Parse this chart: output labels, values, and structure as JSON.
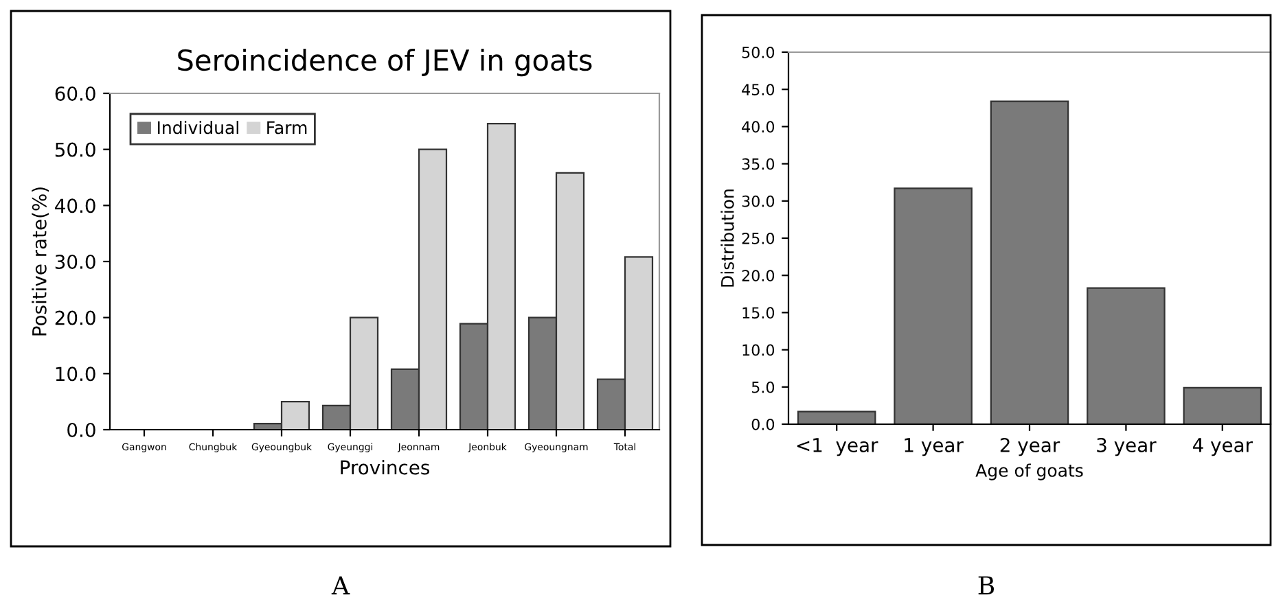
{
  "chart_data": [
    {
      "type": "bar",
      "title": "Seroincidence of JEV in goats",
      "xlabel": "Provinces",
      "ylabel": "Positive rate(%)",
      "categories": [
        "Gangwon",
        "Chungbuk",
        "Gyeoungbuk",
        "Gyeunggi",
        "Jeonnam",
        "Jeonbuk",
        "Gyeoungnam",
        "Total"
      ],
      "series": [
        {
          "name": "Individual",
          "color": "#7a7a7a",
          "values": [
            0,
            0,
            1.1,
            4.3,
            10.8,
            18.9,
            20.0,
            9.0
          ]
        },
        {
          "name": "Farm",
          "color": "#d4d4d4",
          "values": [
            0,
            0,
            5.0,
            20.0,
            50.0,
            54.6,
            45.8,
            30.8
          ]
        }
      ],
      "ylim": [
        0,
        60
      ],
      "yticks": [
        {
          "value": 0,
          "label": "0.0"
        },
        {
          "value": 10,
          "label": "10.0"
        },
        {
          "value": 20,
          "label": "20.0"
        },
        {
          "value": 30,
          "label": "30.0"
        },
        {
          "value": 40,
          "label": "40.0"
        },
        {
          "value": 50,
          "label": "50.0"
        },
        {
          "value": 60,
          "label": "60.0"
        }
      ],
      "legend": "top left",
      "grid": false,
      "annotations": [
        "A"
      ]
    },
    {
      "type": "bar",
      "xlabel": "Age of goats",
      "ylabel": "Distribution",
      "categories": [
        "<1  year",
        "1 year",
        "2 year",
        "3 year",
        "4 year"
      ],
      "series": [
        {
          "color": "#7a7a7a",
          "values": [
            1.7,
            31.7,
            43.4,
            18.3,
            4.9
          ]
        }
      ],
      "ylim": [
        0,
        50
      ],
      "yticks": [
        {
          "value": 0,
          "label": "0.0"
        },
        {
          "value": 5,
          "label": "5.0"
        },
        {
          "value": 10,
          "label": "10.0"
        },
        {
          "value": 15,
          "label": "15.0"
        },
        {
          "value": 20,
          "label": "20.0"
        },
        {
          "value": 25,
          "label": "25.0"
        },
        {
          "value": 30,
          "label": "30.0"
        },
        {
          "value": 35,
          "label": "35.0"
        },
        {
          "value": 40,
          "label": "40.0"
        },
        {
          "value": 45,
          "label": "45.0"
        },
        {
          "value": 50,
          "label": "50.0"
        }
      ],
      "grid": false,
      "annotations": [
        "B"
      ]
    }
  ]
}
